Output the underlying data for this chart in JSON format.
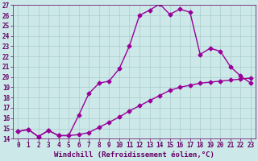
{
  "xlabel": "Windchill (Refroidissement éolien,°C)",
  "bg_color": "#cce8e8",
  "grid_color": "#aacccc",
  "line_color": "#990099",
  "xlim": [
    -0.5,
    23.5
  ],
  "ylim": [
    14,
    27
  ],
  "xticks": [
    0,
    1,
    2,
    3,
    4,
    5,
    6,
    7,
    8,
    9,
    10,
    11,
    12,
    13,
    14,
    15,
    16,
    17,
    18,
    19,
    20,
    21,
    22,
    23
  ],
  "yticks": [
    14,
    15,
    16,
    17,
    18,
    19,
    20,
    21,
    22,
    23,
    24,
    25,
    26,
    27
  ],
  "series1_x": [
    0,
    1,
    2,
    3,
    4,
    5,
    6,
    7,
    8,
    9,
    10,
    11,
    12,
    13,
    14,
    15,
    16,
    17,
    18,
    19,
    20,
    21,
    22,
    23
  ],
  "series1_y": [
    14.7,
    14.9,
    14.2,
    14.8,
    14.3,
    14.3,
    16.3,
    18.4,
    19.4,
    19.6,
    20.8,
    23.0,
    26.0,
    26.5,
    27.1,
    26.1,
    26.6,
    26.3,
    22.2,
    22.8,
    22.5,
    21.0,
    20.1,
    19.4
  ],
  "series2_x": [
    0,
    1,
    2,
    3,
    4,
    5,
    6,
    7,
    8,
    9,
    10,
    11,
    12,
    13,
    14,
    15,
    16,
    17,
    18,
    19,
    20,
    21,
    22,
    23
  ],
  "series2_y": [
    14.7,
    14.9,
    14.2,
    14.8,
    14.3,
    14.3,
    14.4,
    14.6,
    15.1,
    15.6,
    16.1,
    16.7,
    17.2,
    17.7,
    18.2,
    18.7,
    19.0,
    19.2,
    19.4,
    19.5,
    19.6,
    19.7,
    19.8,
    19.9
  ],
  "marker": "D",
  "markersize": 2.5,
  "linewidth": 1.0,
  "xlabel_fontsize": 6.5,
  "tick_fontsize": 5.5,
  "font_color": "#660066"
}
